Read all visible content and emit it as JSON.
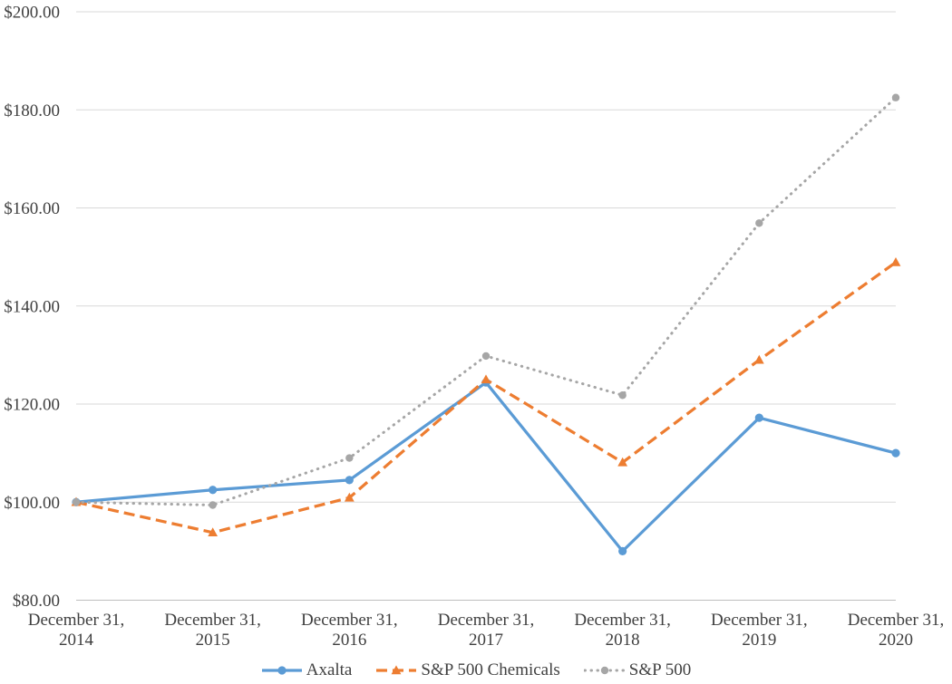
{
  "chart_data": {
    "type": "line",
    "title": "",
    "xlabel": "",
    "ylabel": "",
    "categories": [
      [
        "December 31,",
        "2014"
      ],
      [
        "December 31,",
        "2015"
      ],
      [
        "December 31,",
        "2016"
      ],
      [
        "December 31,",
        "2017"
      ],
      [
        "December 31,",
        "2018"
      ],
      [
        "December 31,",
        "2019"
      ],
      [
        "December 31,",
        "2020"
      ]
    ],
    "series": [
      {
        "name": "Axalta",
        "color": "#5B9BD5",
        "line_style": "solid",
        "marker": "circle",
        "values": [
          100.0,
          102.5,
          104.5,
          124.4,
          90.0,
          117.2,
          110.0
        ]
      },
      {
        "name": "S&P 500 Chemicals",
        "color": "#ED7D31",
        "line_style": "dashed",
        "marker": "triangle",
        "values": [
          100.0,
          93.8,
          100.9,
          125.0,
          108.1,
          129.0,
          148.9
        ]
      },
      {
        "name": "S&P 500",
        "color": "#A6A6A6",
        "line_style": "dotted",
        "marker": "circle",
        "values": [
          100.0,
          99.4,
          109.0,
          129.8,
          121.8,
          156.9,
          182.5
        ]
      }
    ],
    "ylim": [
      80,
      200
    ],
    "ytick_step": 20,
    "ytick_labels": [
      "$80.00",
      "$100.00",
      "$120.00",
      "$140.00",
      "$160.00",
      "$180.00",
      "$200.00"
    ],
    "grid": "horizontal",
    "gridline_color": "#D9D9D9",
    "axis_line_color": "#BFBFBF",
    "text_color": "#404040",
    "legend_position": "bottom"
  }
}
